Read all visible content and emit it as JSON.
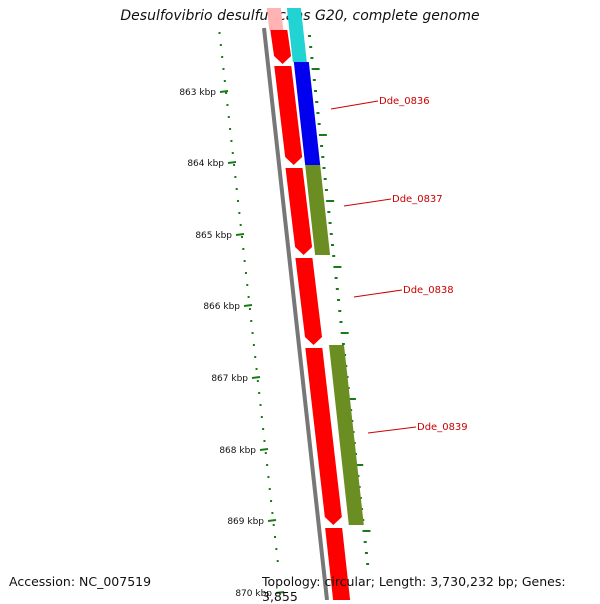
{
  "title": "Desulfovibrio desulfuricans G20, complete genome",
  "kbp_markers": [
    "863 kbp",
    "864 kbp",
    "865 kbp",
    "866 kbp",
    "867 kbp",
    "868 kbp",
    "869 kbp",
    "870 kbp"
  ],
  "gene_labels": [
    "Dde_0836",
    "Dde_0837",
    "Dde_0838",
    "Dde_0839"
  ],
  "colors": {
    "cds_red": "#ff0000",
    "cds_blue": "#0000ee",
    "cds_olive": "#6b8e23",
    "cds_cyan": "#22d3d3",
    "backbone": "#777777",
    "gc_green": "#1a7a1a",
    "label_red": "#cc0000"
  },
  "footer": {
    "accession": "Accession: NC_007519",
    "topology": "Topology: circular; Length: 3,730,232 bp; Genes: 3,855"
  }
}
